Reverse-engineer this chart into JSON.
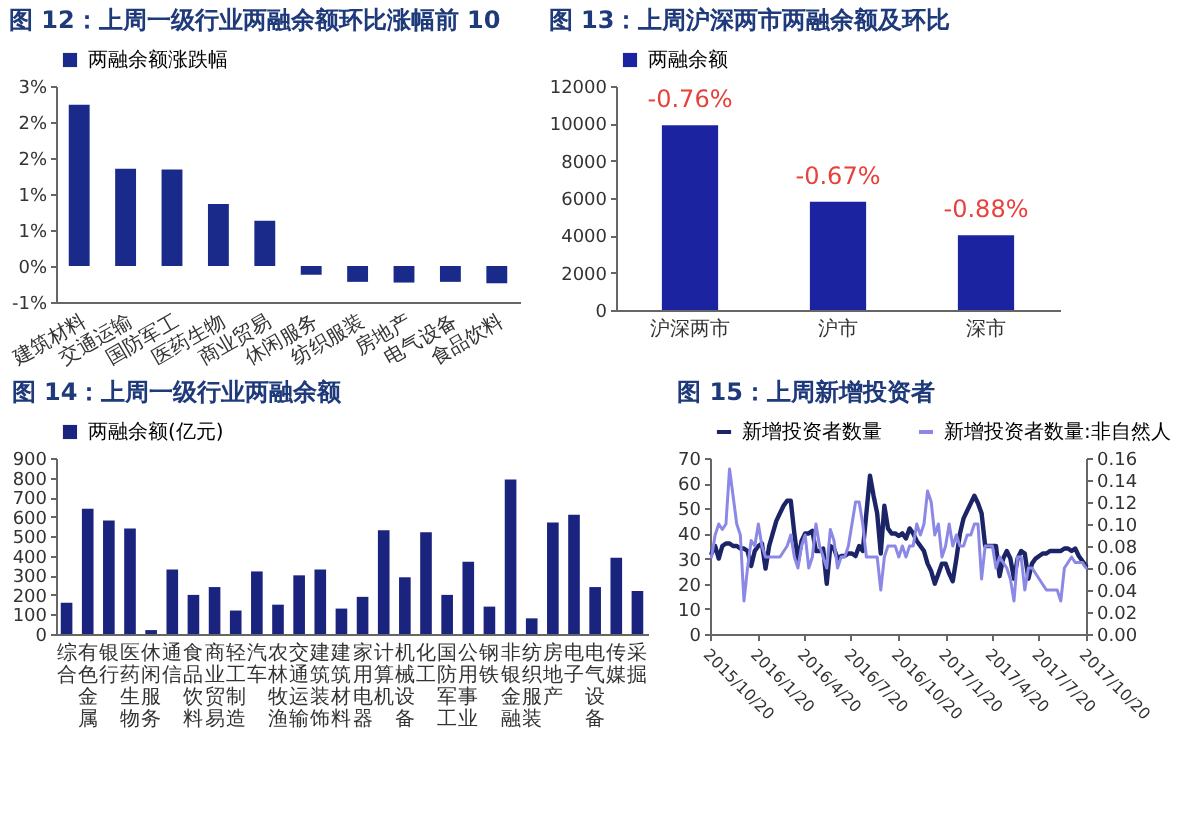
{
  "chart_data": [
    {
      "type": "bar",
      "title": "图 12：上周一级行业两融余额环比涨幅前 10",
      "categories": [
        "建筑材料",
        "交通运输",
        "国防军工",
        "医药生物",
        "商业贸易",
        "休闲服务",
        "纺织服装",
        "房地产",
        "电气设备",
        "食品饮料"
      ],
      "series": [
        {
          "name": "两融余额涨跌幅",
          "color": "#1a2a8a",
          "values": [
            2.24,
            1.35,
            1.34,
            0.86,
            0.63,
            -0.12,
            -0.22,
            -0.23,
            -0.22,
            -0.24
          ]
        }
      ],
      "ylim": [
        -0.5,
        2.5
      ],
      "yticks": [
        {
          "value": -0.5,
          "label": "-1%"
        },
        {
          "value": 0,
          "label": "0%"
        },
        {
          "value": 0.5,
          "label": "1%"
        },
        {
          "value": 1,
          "label": "1%"
        },
        {
          "value": 1.5,
          "label": "2%"
        },
        {
          "value": 2,
          "label": "2%"
        },
        {
          "value": 2.5,
          "label": "3%"
        }
      ],
      "legend": "top"
    },
    {
      "type": "bar",
      "title": "图 13：上周沪深两市两融余额及环比",
      "categories": [
        "沪深两市",
        "沪市",
        "深市"
      ],
      "series": [
        {
          "name": "两融余额",
          "color": "#1c23a0",
          "values": [
            9900,
            5800,
            4000
          ]
        }
      ],
      "annotations": [
        {
          "text": "-0.76%",
          "x": "沪深两市",
          "y": 9900
        },
        {
          "text": "-0.67%",
          "x": "沪市",
          "y": 5800
        },
        {
          "text": "-0.88%",
          "x": "深市",
          "y": 4000
        }
      ],
      "ylim": [
        0,
        12000
      ],
      "yticks": [
        0,
        2000,
        4000,
        6000,
        8000,
        10000,
        12000
      ],
      "legend": "top"
    },
    {
      "type": "bar",
      "title": "图 14：上周一级行业两融余额",
      "categories": [
        "综合",
        "有色金属",
        "银行",
        "医药生物",
        "休闲服务",
        "通信",
        "食品饮料",
        "商业贸易",
        "轻工制造",
        "汽车",
        "农林牧渔",
        "交通运输",
        "建筑装饰",
        "建筑材料",
        "家用电器",
        "计算机",
        "机械设备",
        "化工",
        "国防军工",
        "公用事业",
        "钢铁",
        "非银金融",
        "纺织服装",
        "房地产",
        "电子",
        "电气设备",
        "传媒",
        "采掘"
      ],
      "series": [
        {
          "name": "两融余额(亿元)",
          "color": "#1a237e",
          "values": [
            160,
            640,
            580,
            540,
            20,
            330,
            200,
            240,
            120,
            320,
            150,
            300,
            330,
            130,
            190,
            530,
            290,
            520,
            200,
            370,
            140,
            790,
            80,
            570,
            610,
            240,
            390,
            220
          ]
        }
      ],
      "ylim": [
        0,
        900
      ],
      "yticks": [
        0,
        100,
        200,
        300,
        400,
        500,
        600,
        700,
        800,
        900
      ],
      "legend": "top"
    },
    {
      "type": "line",
      "title": "图 15：上周新增投资者",
      "x": [
        "2015-10-23",
        "2015-10-30",
        "2015-11-06",
        "2015-11-13",
        "2015-11-20",
        "2015-11-27",
        "2015-12-04",
        "2015-12-11",
        "2015-12-18",
        "2015-12-25",
        "2016-01-01",
        "2016-01-08",
        "2016-01-15",
        "2016-01-22",
        "2016-01-29",
        "2016-02-05",
        "2016-02-12",
        "2016-02-19",
        "2016-02-26",
        "2016-03-04",
        "2016-03-11",
        "2016-03-18",
        "2016-03-25",
        "2016-04-01",
        "2016-04-08",
        "2016-04-15",
        "2016-04-22",
        "2016-04-29",
        "2016-05-06",
        "2016-05-13",
        "2016-05-20",
        "2016-05-27",
        "2016-06-03",
        "2016-06-10",
        "2016-06-17",
        "2016-06-24",
        "2016-07-01",
        "2016-07-08",
        "2016-07-15",
        "2016-07-22",
        "2016-07-29",
        "2016-08-05",
        "2016-08-12",
        "2016-08-19",
        "2016-08-26",
        "2016-09-02",
        "2016-09-09",
        "2016-09-16",
        "2016-09-23",
        "2016-09-30",
        "2016-10-07",
        "2016-10-14",
        "2016-10-21",
        "2016-10-28",
        "2016-11-04",
        "2016-11-11",
        "2016-11-18",
        "2016-11-25",
        "2016-12-02",
        "2016-12-09",
        "2016-12-16",
        "2016-12-23",
        "2016-12-30",
        "2017-01-06",
        "2017-01-13",
        "2017-01-20",
        "2017-01-27",
        "2017-02-03",
        "2017-02-10",
        "2017-02-17",
        "2017-02-24",
        "2017-03-03",
        "2017-03-10",
        "2017-03-17",
        "2017-03-24",
        "2017-03-31",
        "2017-04-07",
        "2017-04-14",
        "2017-04-21",
        "2017-04-28",
        "2017-05-05",
        "2017-05-12",
        "2017-05-19",
        "2017-05-26",
        "2017-06-02",
        "2017-06-09",
        "2017-06-16",
        "2017-06-23",
        "2017-06-30",
        "2017-07-07",
        "2017-07-14",
        "2017-07-21",
        "2017-07-28",
        "2017-08-04",
        "2017-08-11",
        "2017-08-18",
        "2017-08-25",
        "2017-09-01",
        "2017-09-08",
        "2017-09-15",
        "2017-09-22",
        "2017-09-29",
        "2017-10-06",
        "2017-10-13",
        "2017-10-20"
      ],
      "series": [
        {
          "name": "新增投资者数量",
          "color": "#1a2466",
          "values": [
            32,
            35,
            30,
            35,
            36,
            36,
            35,
            35,
            34,
            34,
            33,
            27,
            33,
            35,
            36,
            26,
            35,
            40,
            45,
            48,
            51,
            53,
            53,
            40,
            29,
            37,
            40,
            40,
            41,
            33,
            33,
            34,
            20,
            35,
            34,
            30,
            31,
            31,
            32,
            32,
            31,
            35,
            33,
            48,
            63,
            55,
            48,
            32,
            51,
            42,
            40,
            40,
            39,
            40,
            38,
            42,
            40,
            37,
            35,
            33,
            28,
            25,
            20,
            24,
            28,
            28,
            24,
            21,
            30,
            40,
            46,
            49,
            52,
            55,
            52,
            48,
            35,
            35,
            35,
            35,
            23,
            30,
            33,
            30,
            22,
            30,
            33,
            32,
            22,
            28,
            30,
            31,
            32,
            32,
            33,
            33,
            33,
            33,
            34,
            34,
            33,
            34,
            31,
            29,
            27
          ]
        },
        {
          "name": "新增投资者数量:非自然人",
          "color": "#8c89e6",
          "axis": "y2",
          "values": [
            0.07,
            0.09,
            0.1,
            0.095,
            0.1,
            0.15,
            0.125,
            0.1,
            0.09,
            0.03,
            0.06,
            0.085,
            0.08,
            0.1,
            0.08,
            0.07,
            0.07,
            0.07,
            0.07,
            0.07,
            0.075,
            0.08,
            0.09,
            0.07,
            0.06,
            0.08,
            0.09,
            0.06,
            0.07,
            0.1,
            0.08,
            0.07,
            0.06,
            0.095,
            0.085,
            0.06,
            0.07,
            0.07,
            0.08,
            0.1,
            0.12,
            0.12,
            0.1,
            0.07,
            0.07,
            0.07,
            0.07,
            0.04,
            0.07,
            0.08,
            0.08,
            0.08,
            0.07,
            0.08,
            0.07,
            0.08,
            0.08,
            0.1,
            0.09,
            0.1,
            0.13,
            0.12,
            0.09,
            0.1,
            0.07,
            0.08,
            0.1,
            0.08,
            0.09,
            0.08,
            0.08,
            0.09,
            0.09,
            0.1,
            0.1,
            0.05,
            0.08,
            0.08,
            0.08,
            0.06,
            0.07,
            0.065,
            0.06,
            0.05,
            0.03,
            0.07,
            0.07,
            0.04,
            0.06,
            0.06,
            0.055,
            0.05,
            0.045,
            0.04,
            0.04,
            0.04,
            0.04,
            0.03,
            0.06,
            0.065,
            0.07,
            0.065,
            0.065,
            0.065,
            0.06
          ]
        }
      ],
      "xlim": [
        "2015-10-20",
        "2017-10-20"
      ],
      "xticks": [
        {
          "value": "2015-10-20",
          "label": "2015/10/20"
        },
        {
          "value": "2016-01-20",
          "label": "2016/1/20"
        },
        {
          "value": "2016-04-20",
          "label": "2016/4/20"
        },
        {
          "value": "2016-07-20",
          "label": "2016/7/20"
        },
        {
          "value": "2016-10-20",
          "label": "2016/10/20"
        },
        {
          "value": "2017-01-20",
          "label": "2017/1/20"
        },
        {
          "value": "2017-04-20",
          "label": "2017/4/20"
        },
        {
          "value": "2017-07-20",
          "label": "2017/7/20"
        },
        {
          "value": "2017-10-20",
          "label": "2017/10/20"
        }
      ],
      "ylim": [
        0,
        70
      ],
      "yticks": [
        0,
        10,
        20,
        30,
        40,
        50,
        60,
        70
      ],
      "y2lim": [
        0,
        0.16
      ],
      "y2ticks": [
        {
          "value": 0,
          "label": "0.00"
        },
        0.02,
        0.04,
        0.06,
        0.08,
        {
          "value": 0.1,
          "label": "0.10"
        },
        0.12,
        0.14,
        0.16
      ],
      "legend": "top"
    }
  ]
}
